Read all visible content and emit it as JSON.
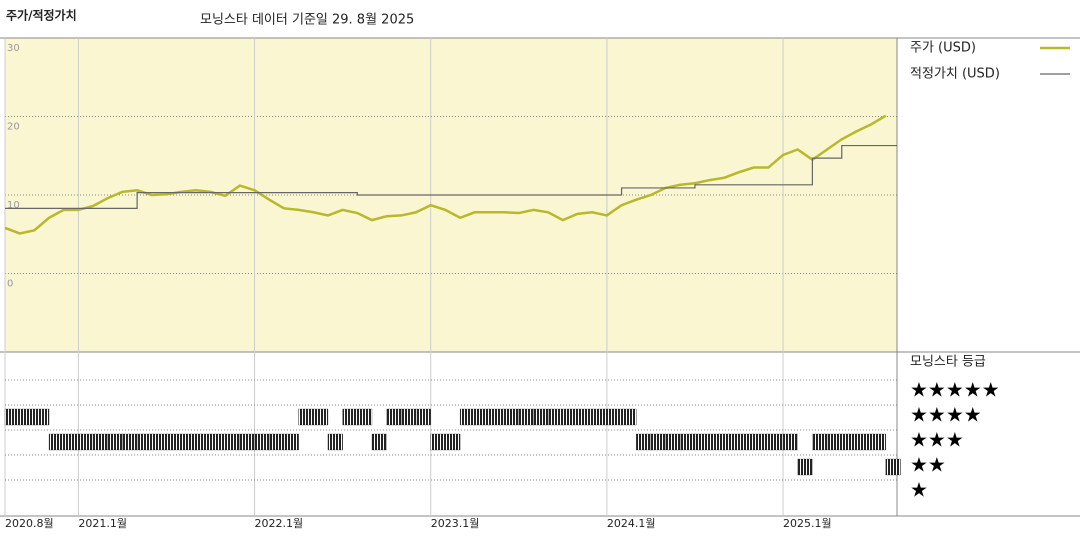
{
  "chart_data": {
    "type": "line",
    "title": "주가/적정가치",
    "subtitle": "모닝스타 데이터 기준일 29. 8월 2025",
    "x": [
      "2020-08",
      "2020-09",
      "2020-10",
      "2020-11",
      "2020-12",
      "2021-01",
      "2021-02",
      "2021-03",
      "2021-04",
      "2021-05",
      "2021-06",
      "2021-07",
      "2021-08",
      "2021-09",
      "2021-10",
      "2021-11",
      "2021-12",
      "2022-01",
      "2022-02",
      "2022-03",
      "2022-04",
      "2022-05",
      "2022-06",
      "2022-07",
      "2022-08",
      "2022-09",
      "2022-10",
      "2022-11",
      "2022-12",
      "2023-01",
      "2023-02",
      "2023-03",
      "2023-04",
      "2023-05",
      "2023-06",
      "2023-07",
      "2023-08",
      "2023-09",
      "2023-10",
      "2023-11",
      "2023-12",
      "2024-01",
      "2024-02",
      "2024-03",
      "2024-04",
      "2024-05",
      "2024-06",
      "2024-07",
      "2024-08",
      "2024-09",
      "2024-10",
      "2024-11",
      "2024-12",
      "2025-01",
      "2025-02",
      "2025-03",
      "2025-04",
      "2025-05",
      "2025-06",
      "2025-07",
      "2025-08"
    ],
    "series": [
      {
        "name": "주가 (USD)",
        "color": "#b8b82a",
        "width": 2.5,
        "step": false,
        "values": [
          5.8,
          5.1,
          5.5,
          7.1,
          8.1,
          8.1,
          8.6,
          9.6,
          10.4,
          10.6,
          10.0,
          10.1,
          10.4,
          10.6,
          10.4,
          9.9,
          11.2,
          10.6,
          9.4,
          8.3,
          8.1,
          7.8,
          7.4,
          8.1,
          7.7,
          6.8,
          7.3,
          7.4,
          7.8,
          8.7,
          8.1,
          7.1,
          7.8,
          7.8,
          7.8,
          7.7,
          8.1,
          7.8,
          6.8,
          7.6,
          7.8,
          7.4,
          8.7,
          9.4,
          10.0,
          10.9,
          11.3,
          11.5,
          11.9,
          12.2,
          12.9,
          13.5,
          13.5,
          15.1,
          15.8,
          14.5,
          15.8,
          17.1,
          18.1,
          19.0,
          20.1
        ]
      },
      {
        "name": "적정가치 (USD)",
        "color": "#666666",
        "width": 1.2,
        "step": true,
        "values": [
          8.3,
          8.3,
          8.3,
          8.3,
          8.3,
          8.3,
          8.3,
          8.3,
          8.3,
          10.3,
          10.3,
          10.3,
          10.3,
          10.3,
          10.3,
          10.3,
          10.3,
          10.3,
          10.3,
          10.3,
          10.3,
          10.3,
          10.3,
          10.3,
          10.0,
          10.0,
          10.0,
          10.0,
          10.0,
          10.0,
          10.0,
          10.0,
          10.0,
          10.0,
          10.0,
          10.0,
          10.0,
          10.0,
          10.0,
          10.0,
          10.0,
          10.0,
          10.9,
          10.9,
          10.9,
          10.9,
          10.9,
          11.3,
          11.3,
          11.3,
          11.3,
          11.3,
          11.3,
          11.3,
          11.3,
          14.7,
          14.7,
          16.3,
          16.3,
          16.3,
          16.3
        ]
      }
    ],
    "ylim": [
      -10,
      30
    ],
    "yticks": [
      0,
      10,
      20,
      30
    ],
    "xticks": [
      {
        "value": "2020-08",
        "label": "2020.8월"
      },
      {
        "value": "2021-01",
        "label": "2021.1월"
      },
      {
        "value": "2022-01",
        "label": "2022.1월"
      },
      {
        "value": "2023-01",
        "label": "2023.1월"
      },
      {
        "value": "2024-01",
        "label": "2024.1월"
      },
      {
        "value": "2025-01",
        "label": "2025.1월"
      }
    ],
    "grid": true,
    "background": "#faf6d2",
    "legend": "right",
    "ratings": {
      "title": "모닝스타 등급",
      "color": "#222222",
      "values": [
        4,
        4,
        4,
        3,
        3,
        3,
        3,
        3,
        3,
        3,
        3,
        3,
        3,
        3,
        3,
        3,
        3,
        3,
        3,
        3,
        4,
        4,
        3,
        4,
        4,
        3,
        4,
        4,
        4,
        3,
        3,
        4,
        4,
        4,
        4,
        4,
        4,
        4,
        4,
        4,
        4,
        4,
        4,
        3,
        3,
        3,
        3,
        3,
        3,
        3,
        3,
        3,
        3,
        3,
        2,
        3,
        3,
        3,
        3,
        3,
        2
      ],
      "ticks": [
        {
          "value": 5,
          "label": "★★★★★"
        },
        {
          "value": 4,
          "label": "★★★★"
        },
        {
          "value": 3,
          "label": "★★★"
        },
        {
          "value": 2,
          "label": "★★"
        },
        {
          "value": 1,
          "label": "★"
        }
      ]
    }
  }
}
